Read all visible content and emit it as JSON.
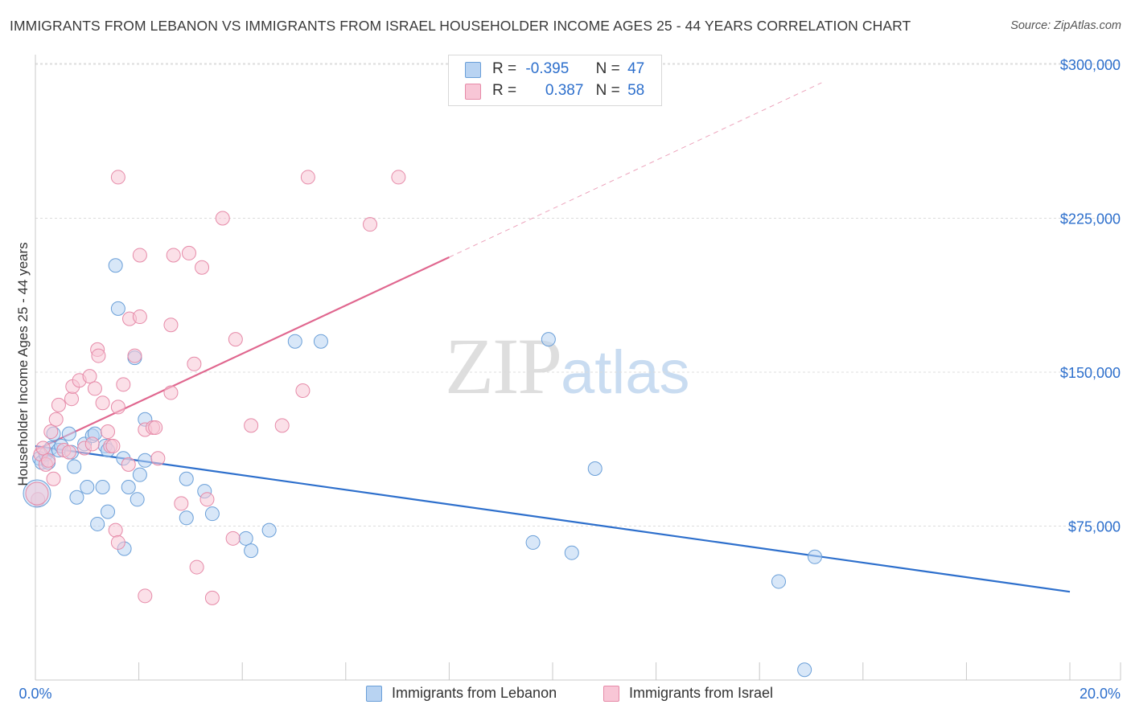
{
  "title": "IMMIGRANTS FROM LEBANON VS IMMIGRANTS FROM ISRAEL HOUSEHOLDER INCOME AGES 25 - 44 YEARS CORRELATION CHART",
  "source": "Source: ZipAtlas.com",
  "watermark": {
    "zip": "ZIP",
    "atlas": "atlas"
  },
  "legend": {
    "lebanon": {
      "r_label": "R =",
      "r_value": "-0.395",
      "n_label": "N =",
      "n_value": "47"
    },
    "israel": {
      "r_label": "R =",
      "r_value": "0.387",
      "n_label": "N =",
      "n_value": "58"
    }
  },
  "colors": {
    "lebanon_fill": "#b8d3f2",
    "lebanon_stroke": "#6a9fd8",
    "lebanon_line": "#2d6fcc",
    "israel_fill": "#f8c6d6",
    "israel_stroke": "#e68aa8",
    "israel_line": "#e0678f",
    "axis_label": "#2d6fcc",
    "grid": "#dcdcdc"
  },
  "chart_data": {
    "type": "scatter",
    "title": "IMMIGRANTS FROM LEBANON VS IMMIGRANTS FROM ISRAEL HOUSEHOLDER INCOME AGES 25 - 44 YEARS CORRELATION CHART",
    "xlabel": "",
    "ylabel": "Householder Income Ages 25 - 44 years",
    "xlim": [
      0,
      20
    ],
    "ylim": [
      0,
      310000
    ],
    "x_tick_labels": [
      "0.0%",
      "20.0%"
    ],
    "y_ticks": [
      75000,
      150000,
      225000,
      300000
    ],
    "y_tick_labels": [
      "$75,000",
      "$150,000",
      "$225,000",
      "$300,000"
    ],
    "grid": true,
    "series": [
      {
        "name": "Immigrants from Lebanon",
        "points": [
          [
            0.08,
            108000
          ],
          [
            0.12,
            106000
          ],
          [
            0.2,
            110000
          ],
          [
            0.25,
            106000
          ],
          [
            0.3,
            113000
          ],
          [
            0.35,
            120000
          ],
          [
            0.45,
            112000
          ],
          [
            0.5,
            114000
          ],
          [
            0.65,
            120000
          ],
          [
            0.7,
            111000
          ],
          [
            0.75,
            104000
          ],
          [
            0.8,
            89000
          ],
          [
            0.95,
            115000
          ],
          [
            1.0,
            94000
          ],
          [
            1.1,
            119000
          ],
          [
            1.15,
            120000
          ],
          [
            1.2,
            76000
          ],
          [
            1.3,
            94000
          ],
          [
            1.35,
            114000
          ],
          [
            1.4,
            112000
          ],
          [
            1.4,
            82000
          ],
          [
            1.55,
            202000
          ],
          [
            1.6,
            181000
          ],
          [
            1.7,
            108000
          ],
          [
            1.72,
            64000
          ],
          [
            1.8,
            94000
          ],
          [
            1.92,
            157000
          ],
          [
            1.97,
            88000
          ],
          [
            2.02,
            100000
          ],
          [
            2.12,
            107000
          ],
          [
            2.12,
            127000
          ],
          [
            2.92,
            98000
          ],
          [
            2.92,
            79000
          ],
          [
            3.27,
            92000
          ],
          [
            3.42,
            81000
          ],
          [
            4.07,
            69000
          ],
          [
            4.17,
            63000
          ],
          [
            4.52,
            73000
          ],
          [
            5.02,
            165000
          ],
          [
            5.52,
            165000
          ],
          [
            9.62,
            67000
          ],
          [
            9.92,
            166000
          ],
          [
            10.37,
            62000
          ],
          [
            10.82,
            103000
          ],
          [
            14.37,
            48000
          ],
          [
            14.87,
            5000
          ],
          [
            15.07,
            60000
          ]
        ]
      },
      {
        "name": "Immigrants from Israel",
        "points": [
          [
            0.05,
            88000
          ],
          [
            0.1,
            110000
          ],
          [
            0.15,
            113000
          ],
          [
            0.2,
            105000
          ],
          [
            0.25,
            107000
          ],
          [
            0.3,
            121000
          ],
          [
            0.35,
            98000
          ],
          [
            0.4,
            127000
          ],
          [
            0.45,
            134000
          ],
          [
            0.55,
            112000
          ],
          [
            0.65,
            111000
          ],
          [
            0.7,
            137000
          ],
          [
            0.72,
            143000
          ],
          [
            0.85,
            146000
          ],
          [
            0.95,
            113000
          ],
          [
            1.05,
            148000
          ],
          [
            1.1,
            115000
          ],
          [
            1.15,
            142000
          ],
          [
            1.2,
            161000
          ],
          [
            1.22,
            158000
          ],
          [
            1.3,
            135000
          ],
          [
            1.4,
            121000
          ],
          [
            1.45,
            114000
          ],
          [
            1.5,
            114000
          ],
          [
            1.55,
            73000
          ],
          [
            1.6,
            133000
          ],
          [
            1.6,
            245000
          ],
          [
            1.6,
            67000
          ],
          [
            1.7,
            144000
          ],
          [
            1.8,
            105000
          ],
          [
            1.82,
            176000
          ],
          [
            1.92,
            158000
          ],
          [
            2.02,
            177000
          ],
          [
            2.02,
            207000
          ],
          [
            2.12,
            41000
          ],
          [
            2.12,
            122000
          ],
          [
            2.27,
            123000
          ],
          [
            2.32,
            123000
          ],
          [
            2.37,
            108000
          ],
          [
            2.62,
            173000
          ],
          [
            2.62,
            140000
          ],
          [
            2.67,
            207000
          ],
          [
            2.82,
            86000
          ],
          [
            2.97,
            208000
          ],
          [
            3.07,
            154000
          ],
          [
            3.12,
            55000
          ],
          [
            3.22,
            201000
          ],
          [
            3.32,
            88000
          ],
          [
            3.42,
            40000
          ],
          [
            3.62,
            225000
          ],
          [
            3.82,
            69000
          ],
          [
            3.87,
            166000
          ],
          [
            4.17,
            124000
          ],
          [
            4.77,
            124000
          ],
          [
            5.17,
            141000
          ],
          [
            5.27,
            245000
          ],
          [
            6.47,
            222000
          ],
          [
            7.02,
            245000
          ]
        ]
      }
    ],
    "trendlines": [
      {
        "series": "Immigrants from Lebanon",
        "x": [
          0,
          20
        ],
        "y": [
          114000,
          43000
        ],
        "style": "solid"
      },
      {
        "series": "Immigrants from Israel",
        "x": [
          0,
          8
        ],
        "y": [
          112000,
          206000
        ],
        "style": "solid"
      },
      {
        "series": "Immigrants from Israel",
        "x": [
          8,
          15.2
        ],
        "y": [
          206000,
          291000
        ],
        "style": "dashed"
      }
    ]
  }
}
